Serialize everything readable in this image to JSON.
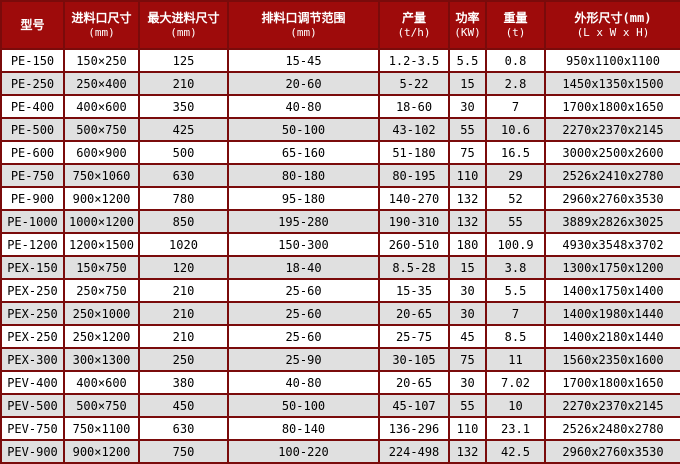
{
  "colors": {
    "header_bg": "#9e0b0b",
    "header_text": "#ffffff",
    "grid_border": "#7a0b0b",
    "row_alt_bg": "#e0e0e0",
    "row_bg": "#ffffff",
    "cell_text": "#000000"
  },
  "table": {
    "columns": [
      {
        "label": "型号",
        "unit": ""
      },
      {
        "label": "进料口尺寸",
        "unit": "(mm)"
      },
      {
        "label": "最大进料尺寸",
        "unit": "(mm)"
      },
      {
        "label": "排料口调节范围",
        "unit": "(mm)"
      },
      {
        "label": "产量",
        "unit": "(t/h)"
      },
      {
        "label": "功率",
        "unit": "(KW)"
      },
      {
        "label": "重量",
        "unit": "(t)"
      },
      {
        "label": "外形尺寸(mm)",
        "unit": "(L x W x H)"
      }
    ],
    "rows": [
      {
        "cells": [
          "PE-150",
          "150×250",
          "125",
          "15-45",
          "1.2-3.5",
          "5.5",
          "0.8",
          "950x1100x1100"
        ]
      },
      {
        "cells": [
          "PE-250",
          "250×400",
          "210",
          "20-60",
          "5-22",
          "15",
          "2.8",
          "1450x1350x1500"
        ]
      },
      {
        "cells": [
          "PE-400",
          "400×600",
          "350",
          "40-80",
          "18-60",
          "30",
          "7",
          "1700x1800x1650"
        ]
      },
      {
        "cells": [
          "PE-500",
          "500×750",
          "425",
          "50-100",
          "43-102",
          "55",
          "10.6",
          "2270x2370x2145"
        ]
      },
      {
        "cells": [
          "PE-600",
          "600×900",
          "500",
          "65-160",
          "51-180",
          "75",
          "16.5",
          "3000x2500x2600"
        ]
      },
      {
        "cells": [
          "PE-750",
          "750×1060",
          "630",
          "80-180",
          "80-195",
          "110",
          "29",
          "2526x2410x2780"
        ]
      },
      {
        "cells": [
          "PE-900",
          "900×1200",
          "780",
          "95-180",
          "140-270",
          "132",
          "52",
          "2960x2760x3530"
        ]
      },
      {
        "cells": [
          "PE-1000",
          "1000×1200",
          "850",
          "195-280",
          "190-310",
          "132",
          "55",
          "3889x2826x3025"
        ]
      },
      {
        "cells": [
          "PE-1200",
          "1200×1500",
          "1020",
          "150-300",
          "260-510",
          "180",
          "100.9",
          "4930x3548x3702"
        ]
      },
      {
        "cells": [
          "PEX-150",
          "150×750",
          "120",
          "18-40",
          "8.5-28",
          "15",
          "3.8",
          "1300x1750x1200"
        ]
      },
      {
        "cells": [
          "PEX-250",
          "250×750",
          "210",
          "25-60",
          "15-35",
          "30",
          "5.5",
          "1400x1750x1400"
        ]
      },
      {
        "cells": [
          "PEX-250",
          "250×1000",
          "210",
          "25-60",
          "20-65",
          "30",
          "7",
          "1400x1980x1440"
        ]
      },
      {
        "cells": [
          "PEX-250",
          "250×1200",
          "210",
          "25-60",
          "25-75",
          "45",
          "8.5",
          "1400x2180x1440"
        ]
      },
      {
        "cells": [
          "PEX-300",
          "300×1300",
          "250",
          "25-90",
          "30-105",
          "75",
          "11",
          "1560x2350x1600"
        ]
      },
      {
        "cells": [
          "PEV-400",
          "400×600",
          "380",
          "40-80",
          "20-65",
          "30",
          "7.02",
          "1700x1800x1650"
        ]
      },
      {
        "cells": [
          "PEV-500",
          "500×750",
          "450",
          "50-100",
          "45-107",
          "55",
          "10",
          "2270x2370x2145"
        ]
      },
      {
        "cells": [
          "PEV-750",
          "750×1100",
          "630",
          "80-140",
          "136-296",
          "110",
          "23.1",
          "2526x2480x2780"
        ]
      },
      {
        "cells": [
          "PEV-900",
          "900×1200",
          "750",
          "100-220",
          "224-498",
          "132",
          "42.5",
          "2960x2760x3530"
        ]
      }
    ]
  }
}
